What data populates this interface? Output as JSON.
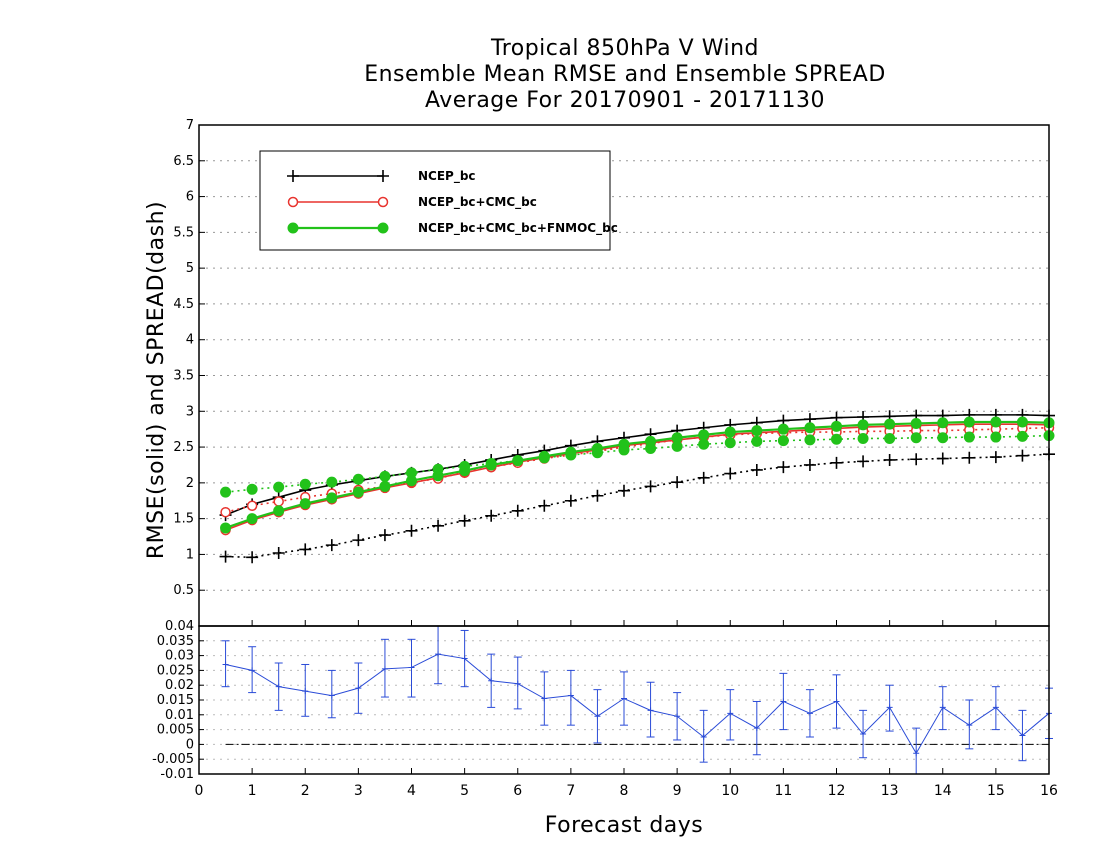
{
  "title_lines": [
    "Tropical 850hPa V Wind",
    "Ensemble Mean RMSE and Ensemble SPREAD",
    "Average For 20170901 - 20171130"
  ],
  "chart_data": [
    {
      "type": "line",
      "xlabel": "Forecast days",
      "ylabel": "RMSE(solid) and SPREAD(dash)",
      "xlim": [
        0,
        16
      ],
      "ylim": [
        0,
        7
      ],
      "yticks": [
        "0.5",
        "1",
        "1.5",
        "2",
        "2.5",
        "3",
        "3.5",
        "4",
        "4.5",
        "5",
        "5.5",
        "6",
        "6.5",
        "7"
      ],
      "xticks": [
        "0",
        "1",
        "2",
        "3",
        "4",
        "5",
        "6",
        "7",
        "8",
        "9",
        "10",
        "11",
        "12",
        "13",
        "14",
        "15",
        "16"
      ],
      "grid": "horizontal dotted",
      "legend_position": "top-left",
      "x": [
        0.5,
        1,
        1.5,
        2,
        2.5,
        3,
        3.5,
        4,
        4.5,
        5,
        5.5,
        6,
        6.5,
        7,
        7.5,
        8,
        8.5,
        9,
        9.5,
        10,
        10.5,
        11,
        11.5,
        12,
        12.5,
        13,
        13.5,
        14,
        14.5,
        15,
        15.5,
        16
      ],
      "series": [
        {
          "name": "NCEP_bc",
          "color": "#000000",
          "marker": "plus",
          "rmse": [
            1.55,
            1.7,
            1.8,
            1.9,
            1.97,
            2.03,
            2.09,
            2.14,
            2.19,
            2.25,
            2.32,
            2.39,
            2.45,
            2.52,
            2.58,
            2.63,
            2.68,
            2.73,
            2.77,
            2.81,
            2.84,
            2.87,
            2.89,
            2.91,
            2.92,
            2.93,
            2.94,
            2.94,
            2.95,
            2.95,
            2.95,
            2.94
          ],
          "spread": [
            0.97,
            0.96,
            1.02,
            1.07,
            1.13,
            1.2,
            1.27,
            1.33,
            1.4,
            1.47,
            1.54,
            1.61,
            1.68,
            1.75,
            1.82,
            1.89,
            1.95,
            2.01,
            2.07,
            2.13,
            2.18,
            2.22,
            2.25,
            2.28,
            2.3,
            2.32,
            2.33,
            2.34,
            2.35,
            2.36,
            2.38,
            2.4
          ]
        },
        {
          "name": "NCEP_bc+CMC_bc",
          "color": "#e8332e",
          "marker": "open-circle",
          "rmse": [
            1.34,
            1.48,
            1.59,
            1.69,
            1.77,
            1.85,
            1.93,
            2.0,
            2.07,
            2.14,
            2.22,
            2.29,
            2.35,
            2.41,
            2.46,
            2.52,
            2.56,
            2.6,
            2.64,
            2.68,
            2.7,
            2.72,
            2.74,
            2.76,
            2.78,
            2.79,
            2.8,
            2.81,
            2.82,
            2.82,
            2.82,
            2.81
          ],
          "spread": [
            1.59,
            1.68,
            1.74,
            1.8,
            1.85,
            1.9,
            1.95,
            2.01,
            2.06,
            2.15,
            2.22,
            2.28,
            2.34,
            2.39,
            2.44,
            2.5,
            2.55,
            2.6,
            2.64,
            2.67,
            2.69,
            2.7,
            2.71,
            2.71,
            2.72,
            2.72,
            2.73,
            2.73,
            2.74,
            2.75,
            2.76,
            2.77
          ]
        },
        {
          "name": "NCEP_bc+CMC_bc+FNMOC_bc",
          "color": "#22c21a",
          "marker": "filled-circle",
          "rmse": [
            1.37,
            1.5,
            1.61,
            1.71,
            1.79,
            1.87,
            1.95,
            2.03,
            2.1,
            2.17,
            2.25,
            2.31,
            2.37,
            2.43,
            2.48,
            2.54,
            2.58,
            2.63,
            2.67,
            2.71,
            2.73,
            2.75,
            2.77,
            2.79,
            2.81,
            2.82,
            2.83,
            2.84,
            2.85,
            2.85,
            2.85,
            2.84
          ],
          "spread": [
            1.87,
            1.91,
            1.94,
            1.98,
            2.01,
            2.05,
            2.09,
            2.14,
            2.19,
            2.23,
            2.27,
            2.31,
            2.35,
            2.39,
            2.42,
            2.46,
            2.48,
            2.51,
            2.54,
            2.56,
            2.58,
            2.59,
            2.6,
            2.61,
            2.62,
            2.62,
            2.63,
            2.63,
            2.64,
            2.64,
            2.65,
            2.66
          ]
        }
      ]
    },
    {
      "type": "line",
      "subtype": "error-bar",
      "xlim": [
        0,
        16
      ],
      "ylim": [
        -0.01,
        0.04
      ],
      "yticks": [
        "-0.01",
        "-0.005",
        "0",
        "0.005",
        "0.01",
        "0.015",
        "0.02",
        "0.025",
        "0.03",
        "0.035",
        "0.04"
      ],
      "color": "#2a4bd7",
      "x": [
        0.5,
        1,
        1.5,
        2,
        2.5,
        3,
        3.5,
        4,
        4.5,
        5,
        5.5,
        6,
        6.5,
        7,
        7.5,
        8,
        8.5,
        9,
        9.5,
        10,
        10.5,
        11,
        11.5,
        12,
        12.5,
        13,
        13.5,
        14,
        14.5,
        15,
        15.5,
        16
      ],
      "values": [
        0.027,
        0.025,
        0.0195,
        0.018,
        0.0165,
        0.019,
        0.0255,
        0.026,
        0.0305,
        0.029,
        0.0215,
        0.0205,
        0.0155,
        0.0165,
        0.0095,
        0.0155,
        0.0115,
        0.0095,
        0.0025,
        0.0105,
        0.0055,
        0.0145,
        0.0105,
        0.0145,
        0.0035,
        0.0125,
        -0.003,
        0.0125,
        0.0065,
        0.0125,
        0.003,
        0.0105
      ],
      "err_low": [
        0.0195,
        0.0175,
        0.0115,
        0.0095,
        0.009,
        0.0105,
        0.016,
        0.016,
        0.0205,
        0.0195,
        0.0125,
        0.012,
        0.0065,
        0.0065,
        0.0005,
        0.0065,
        0.0025,
        0.0015,
        -0.006,
        0.0015,
        -0.0035,
        0.005,
        0.0025,
        0.0055,
        -0.0045,
        0.0045,
        -0.012,
        0.005,
        -0.0015,
        0.005,
        -0.0055,
        0.002
      ],
      "err_high": [
        0.035,
        0.033,
        0.0275,
        0.027,
        0.025,
        0.0275,
        0.0355,
        0.0355,
        0.0405,
        0.0385,
        0.0305,
        0.0295,
        0.0245,
        0.025,
        0.0185,
        0.0245,
        0.021,
        0.0175,
        0.0115,
        0.0185,
        0.0145,
        0.024,
        0.0185,
        0.0235,
        0.0115,
        0.02,
        0.0055,
        0.0195,
        0.015,
        0.0195,
        0.0115,
        0.019
      ],
      "zero_line": "dash-dot"
    }
  ]
}
